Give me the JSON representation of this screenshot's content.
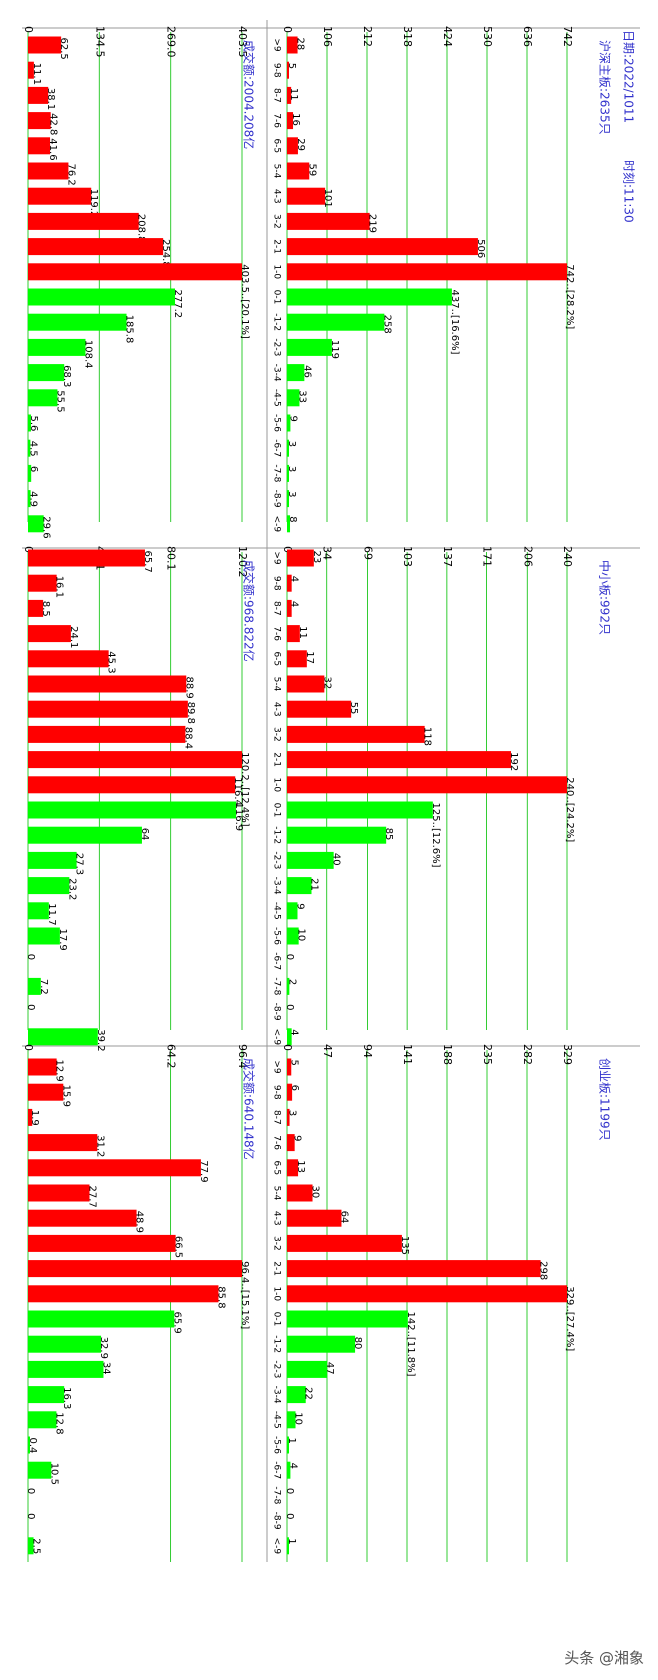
{
  "header": {
    "date": "日期:2022/1011",
    "time": "时刻:11:30"
  },
  "colors": {
    "up": "#ff0000",
    "down": "#00ff00",
    "grid": "#33cc33",
    "axis_text": "#000000",
    "title_text": "#3333cc",
    "frame": "#999999"
  },
  "watermark": "头条 @湘象",
  "panels_info": [
    {
      "board": "沪深主板:2635只",
      "turnover": "成交额:2004.208亿"
    },
    {
      "board": "中小板:992只",
      "turnover": "成交额:968.822亿"
    },
    {
      "board": "创业板:1199只",
      "turnover": "成交额:640.148亿"
    }
  ],
  "chart_data": [
    {
      "type": "bar",
      "title": "沪深主板:2635只",
      "categories": [
        ">9",
        "9-8",
        "8-7",
        "7-6",
        "6-5",
        "5-4",
        "4-3",
        "3-2",
        "2-1",
        "1-0",
        "0-1",
        "-1-2",
        "-2-3",
        "-3-4",
        "-4-5",
        "-5-6",
        "-6-7",
        "-7-8",
        "-8-9",
        "<-9"
      ],
      "values": [
        28,
        5,
        11,
        16,
        29,
        59,
        101,
        219,
        506,
        742,
        437,
        258,
        119,
        46,
        33,
        9,
        3,
        3,
        3,
        8
      ],
      "labels": [
        "28",
        "5",
        "11",
        "16",
        "29",
        "59",
        "101",
        "219",
        "506",
        "742..[28.2%]",
        "437..[16.6%]",
        "258",
        "119",
        "46",
        "33",
        "9",
        "3",
        "3",
        "3",
        "8"
      ],
      "axis_ticks": [
        "0",
        "106",
        "212",
        "318",
        "424",
        "530",
        "636",
        "742"
      ],
      "ylim": [
        0,
        742
      ]
    },
    {
      "type": "bar",
      "title": "成交额:2004.208亿",
      "categories": [
        ">9",
        "9-8",
        "8-7",
        "7-6",
        "6-5",
        "5-4",
        "4-3",
        "3-2",
        "2-1",
        "1-0",
        "0-1",
        "-1-2",
        "-2-3",
        "-3-4",
        "-4-5",
        "-5-6",
        "-6-7",
        "-7-8",
        "-8-9",
        "<-9"
      ],
      "values": [
        62.5,
        11.1,
        38.1,
        42.8,
        41.6,
        76.2,
        119.2,
        208.8,
        254.8,
        403.5,
        277.2,
        185.8,
        108.4,
        68.3,
        55.5,
        5.6,
        4.5,
        6,
        4.9,
        29.6
      ],
      "labels": [
        "62.5",
        "11.1",
        "38.1",
        "42.8",
        "41.6",
        "76.2",
        "119.2",
        "208.8",
        "254.8",
        "403.5..[20.1%]",
        "277.2",
        "185.8",
        "108.4",
        "68.3",
        "55.5",
        "5.6",
        "4.5",
        "6",
        "4.9",
        "29.6"
      ],
      "axis_ticks": [
        "0",
        "134.5",
        "269.0",
        "403.5"
      ],
      "ylim": [
        0,
        403.5
      ]
    },
    {
      "type": "bar",
      "title": "中小板:992只",
      "categories": [
        ">9",
        "9-8",
        "8-7",
        "7-6",
        "6-5",
        "5-4",
        "4-3",
        "3-2",
        "2-1",
        "1-0",
        "0-1",
        "-1-2",
        "-2-3",
        "-3-4",
        "-4-5",
        "-5-6",
        "-6-7",
        "-7-8",
        "-8-9",
        "<-9"
      ],
      "values": [
        23,
        4,
        4,
        11,
        17,
        32,
        55,
        118,
        192,
        240,
        125,
        85,
        40,
        21,
        9,
        10,
        0,
        2,
        0,
        4
      ],
      "labels": [
        "23",
        "4",
        "4",
        "11",
        "17",
        "32",
        "55",
        "118",
        "192",
        "240..[24.2%]",
        "125..[12.6%]",
        "85",
        "40",
        "21",
        "9",
        "10",
        "0",
        "2",
        "0",
        "4"
      ],
      "axis_ticks": [
        "0",
        "34",
        "69",
        "103",
        "137",
        "171",
        "206",
        "240"
      ],
      "ylim": [
        0,
        240
      ]
    },
    {
      "type": "bar",
      "title": "成交额:968.822亿",
      "categories": [
        ">9",
        "9-8",
        "8-7",
        "7-6",
        "6-5",
        "5-4",
        "4-3",
        "3-2",
        "2-1",
        "1-0",
        "0-1",
        "-1-2",
        "-2-3",
        "-3-4",
        "-4-5",
        "-5-6",
        "-6-7",
        "-7-8",
        "-8-9",
        "<-9"
      ],
      "values": [
        65.7,
        16.1,
        8.5,
        24.1,
        45.3,
        88.9,
        89.8,
        88.4,
        120.2,
        116.4,
        116.9,
        64,
        27.3,
        23.2,
        11.7,
        17.9,
        0,
        7.2,
        0,
        39.2
      ],
      "labels": [
        "65.7",
        "16.1",
        "8.5",
        "24.1",
        "45.3",
        "88.9",
        "89.8",
        "88.4",
        "120.2..[12.4%]",
        "116.4",
        "116.9",
        "64",
        "27.3",
        "23.2",
        "11.7",
        "17.9",
        "0",
        "7.2",
        "0",
        "39.2"
      ],
      "axis_ticks": [
        "0",
        "40.1",
        "80.1",
        "120.2"
      ],
      "ylim": [
        0,
        120.2
      ]
    },
    {
      "type": "bar",
      "title": "创业板:1199只",
      "categories": [
        ">9",
        "9-8",
        "8-7",
        "7-6",
        "6-5",
        "5-4",
        "4-3",
        "3-2",
        "2-1",
        "1-0",
        "0-1",
        "-1-2",
        "-2-3",
        "-3-4",
        "-4-5",
        "-5-6",
        "-6-7",
        "-7-8",
        "-8-9",
        "<-9"
      ],
      "values": [
        5,
        6,
        3,
        9,
        13,
        30,
        64,
        135,
        298,
        329,
        142,
        80,
        47,
        22,
        10,
        1,
        4,
        0,
        0,
        1
      ],
      "labels": [
        "5",
        "6",
        "3",
        "9",
        "13",
        "30",
        "64",
        "135",
        "298",
        "329..[27.4%]",
        "142..[11.8%]",
        "80",
        "47",
        "22",
        "10",
        "1",
        "4",
        "0",
        "0",
        "1"
      ],
      "axis_ticks": [
        "0",
        "47",
        "94",
        "141",
        "188",
        "235",
        "282",
        "329"
      ],
      "ylim": [
        0,
        329
      ]
    },
    {
      "type": "bar",
      "title": "成交额:640.148亿",
      "categories": [
        ">9",
        "9-8",
        "8-7",
        "7-6",
        "6-5",
        "5-4",
        "4-3",
        "3-2",
        "2-1",
        "1-0",
        "0-1",
        "-1-2",
        "-2-3",
        "-3-4",
        "-4-5",
        "-5-6",
        "-6-7",
        "-7-8",
        "-8-9",
        "<-9"
      ],
      "values": [
        12.9,
        15.9,
        1.9,
        31.2,
        77.9,
        27.7,
        48.9,
        66.5,
        96.4,
        85.8,
        65.9,
        32.9,
        34,
        16.3,
        12.8,
        0.4,
        10.5,
        0,
        0,
        2.5
      ],
      "labels": [
        "12.9",
        "15.9",
        "1.9",
        "31.2",
        "77.9",
        "27.7",
        "48.9",
        "66.5",
        "96.4..[15.1%]",
        "85.8",
        "65.9",
        "32.9",
        "34",
        "16.3",
        "12.8",
        "0.4",
        "10.5",
        "0",
        "0",
        "2.5"
      ],
      "axis_ticks": [
        "0",
        "64.2",
        "96.4"
      ],
      "ylim": [
        0,
        96.4
      ]
    }
  ]
}
